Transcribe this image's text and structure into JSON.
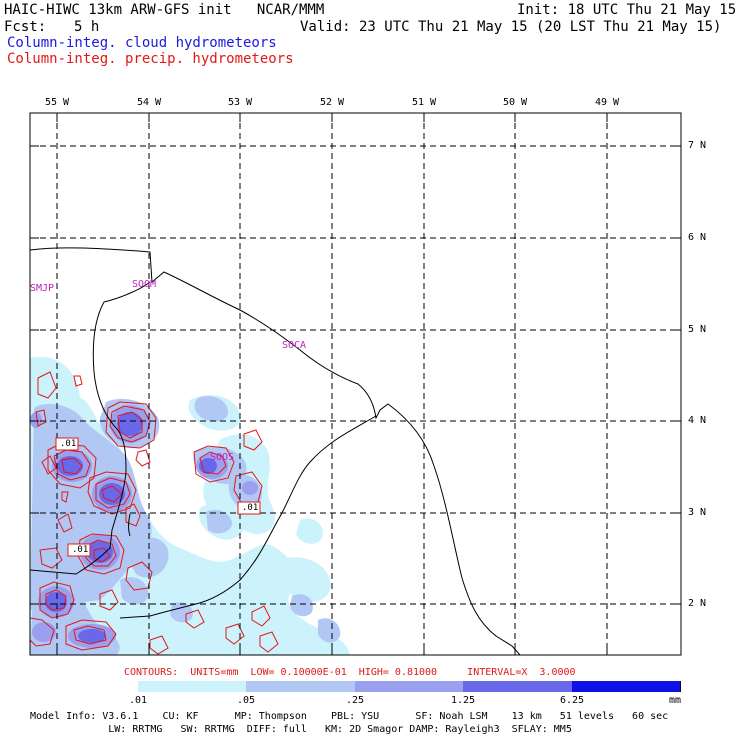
{
  "header": {
    "model": "HAIC-HIWC 13km ARW-GFS init   NCAR/MMM",
    "init": "Init: 18 UTC Thu 21 May 15",
    "fcst_label": "Fcst:",
    "fcst_value": "5 h",
    "valid": "Valid: 23 UTC Thu 21 May 15 (20 LST Thu 21 May 15)",
    "field1": "Column-integ. cloud hydrometeors",
    "field2": "Column-integ. precip. hydrometeors"
  },
  "colors": {
    "field1": "#1a1adc",
    "field2": "#e01818",
    "station": "#c020c0",
    "fill_levels": [
      "#ffffff",
      "#ccf2fb",
      "#b2c8f4",
      "#9aa0ee",
      "#6a68ea",
      "#1010e8"
    ]
  },
  "map": {
    "lon_labels": [
      "55 W",
      "54 W",
      "53 W",
      "52 W",
      "51 W",
      "50 W",
      "49 W"
    ],
    "lat_labels": [
      "7 N",
      "6 N",
      "5 N",
      "4 N",
      "3 N",
      "2 N"
    ],
    "stations": [
      "SMJP",
      "SOOM",
      "SOCA",
      "SOOS"
    ],
    "contour_labels": [
      ".01",
      ".01",
      ".01"
    ]
  },
  "contour_info": {
    "text": "CONTOURS:  UNITS=mm  LOW= 0.10000E-01  HIGH= 0.81000     INTERVAL=X  3.0000"
  },
  "colorbar": {
    "ticks": [
      ".01",
      ".05",
      ".25",
      "1.25",
      "6.25"
    ],
    "units": "mm"
  },
  "footer": {
    "line1": "Model Info: V3.6.1    CU: KF      MP: Thompson    PBL: YSU      SF: Noah LSM    13 km   51 levels   60 sec",
    "line2": "             LW: RRTMG   SW: RRTMG  DIFF: full   KM: 2D Smagor DAMP: Rayleigh3  SFLAY: MM5"
  }
}
